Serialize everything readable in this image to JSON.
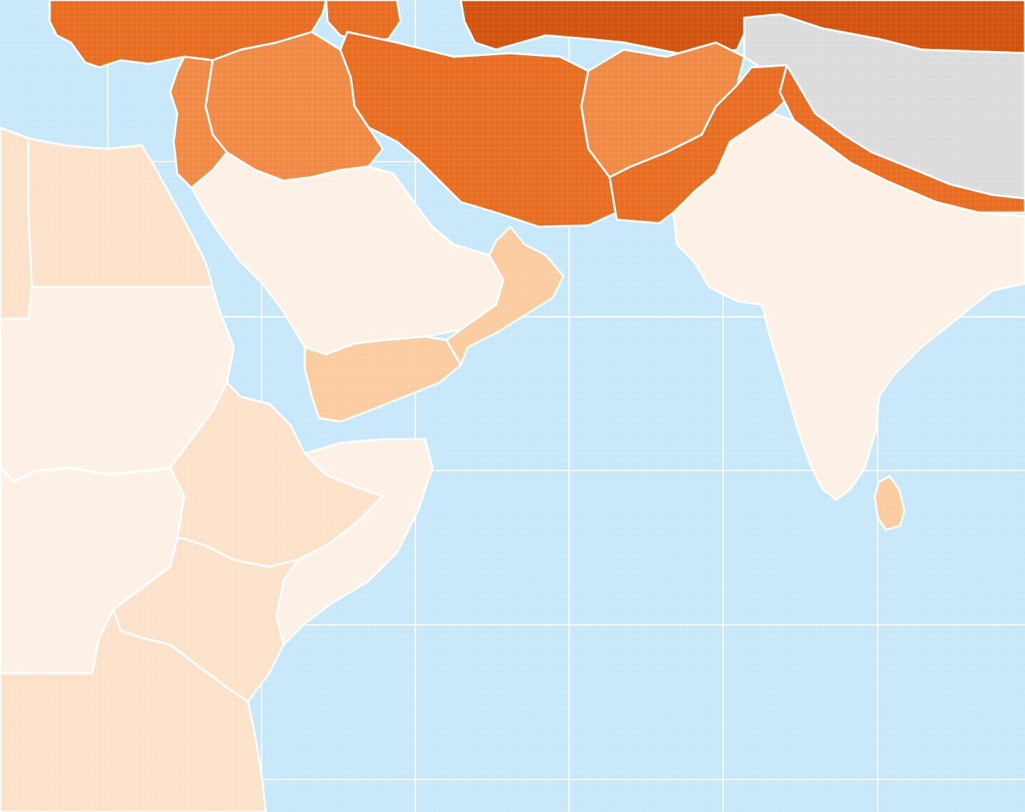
{
  "map": {
    "colors": {
      "ocean": "#c6e8fa",
      "graticule": "#ffffff",
      "border": "#ffffff",
      "nodata": "#dcdcdc",
      "scale": [
        "#fdf1e5",
        "#fde2c9",
        "#fccb9e",
        "#f9a66a",
        "#f28a43",
        "#ea6c1f",
        "#d4520c"
      ]
    },
    "regions": [
      {
        "name": "turkey",
        "level": 5
      },
      {
        "name": "caucasus",
        "level": 5
      },
      {
        "name": "central-asia-north",
        "level": 6
      },
      {
        "name": "tibet-china",
        "level": null
      },
      {
        "name": "iraq",
        "level": 4
      },
      {
        "name": "syria-jordan",
        "level": 4
      },
      {
        "name": "iran",
        "level": 5
      },
      {
        "name": "afghanistan",
        "level": 4
      },
      {
        "name": "pakistan",
        "level": 5
      },
      {
        "name": "egypt",
        "level": 1
      },
      {
        "name": "libya",
        "level": 1
      },
      {
        "name": "sudan",
        "level": 0
      },
      {
        "name": "saudi-arabia",
        "level": 0
      },
      {
        "name": "yemen",
        "level": 2
      },
      {
        "name": "oman",
        "level": 2
      },
      {
        "name": "ethiopia",
        "level": 1
      },
      {
        "name": "somalia",
        "level": 0
      },
      {
        "name": "kenya",
        "level": 1
      },
      {
        "name": "tanzania",
        "level": 1
      },
      {
        "name": "south-sudan-uganda",
        "level": 0
      },
      {
        "name": "india",
        "level": 0
      },
      {
        "name": "nepal-himalaya",
        "level": 5
      },
      {
        "name": "sri-lanka",
        "level": 2
      }
    ]
  }
}
